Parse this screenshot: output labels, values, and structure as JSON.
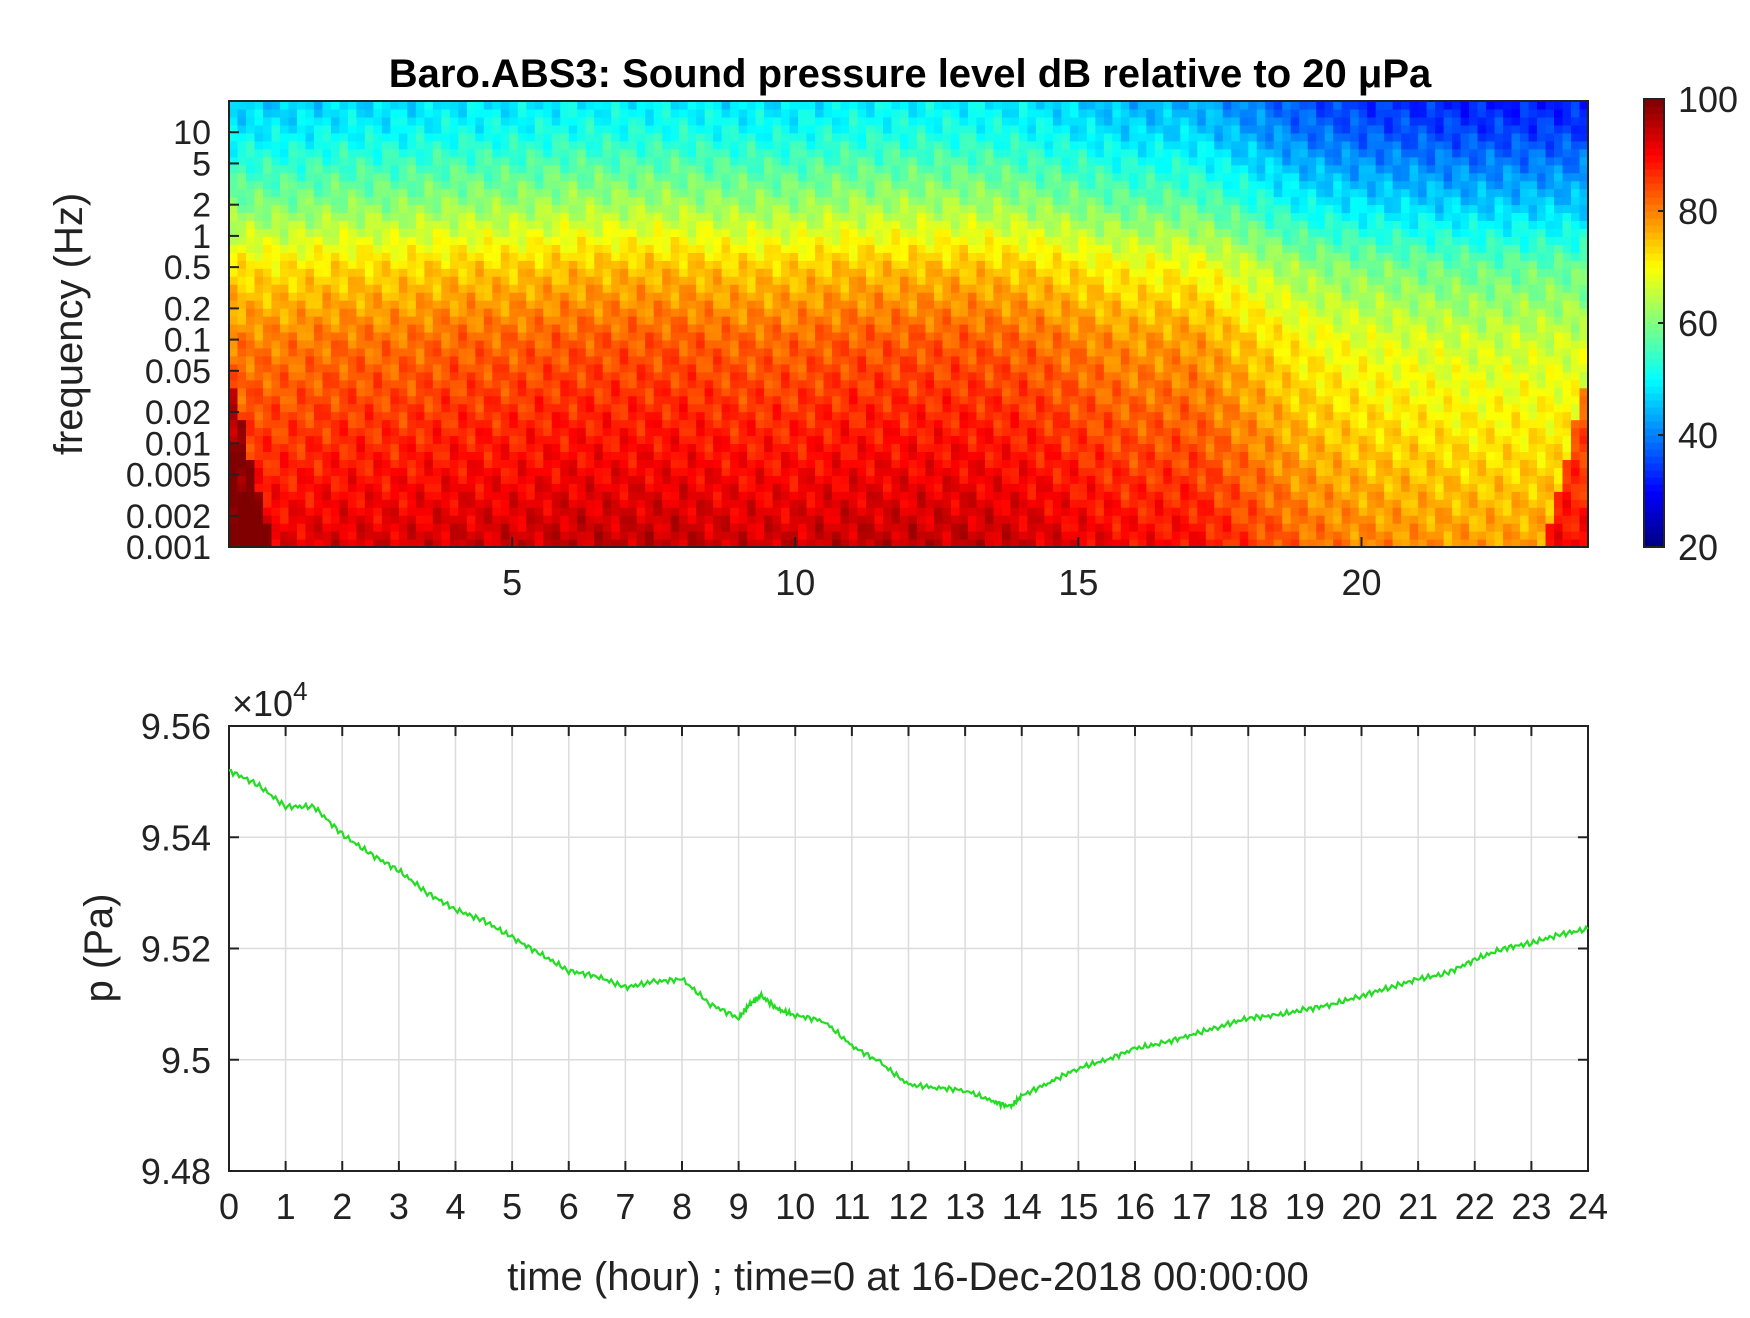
{
  "chart_data": [
    {
      "type": "heatmap",
      "title": "Baro.ABS3: Sound pressure level dB relative to 20 μPa",
      "xlabel": "",
      "ylabel": "frequency (Hz)",
      "x_scale": "linear",
      "y_scale": "log",
      "xlim": [
        0,
        24
      ],
      "ylim": [
        0.001,
        20
      ],
      "x_ticks": [
        5,
        10,
        15,
        20
      ],
      "x_tick_labels": [
        "5",
        "10",
        "15",
        "20"
      ],
      "y_ticks": [
        0.001,
        0.002,
        0.005,
        0.01,
        0.02,
        0.05,
        0.1,
        0.2,
        0.5,
        1,
        2,
        5,
        10
      ],
      "y_tick_labels": [
        "0.001",
        "0.002",
        "0.005",
        "0.01",
        "0.02",
        "0.05",
        "0.1",
        "0.2",
        "0.5",
        "1",
        "2",
        "5",
        "10"
      ],
      "colormap": "jet",
      "colorbar": {
        "range": [
          20,
          100
        ],
        "ticks": [
          20,
          40,
          60,
          80,
          100
        ],
        "tick_labels": [
          "20",
          "40",
          "60",
          "80",
          "100"
        ]
      },
      "spl_hour_means_db": [
        82,
        82,
        83,
        83,
        84,
        84,
        85,
        85,
        85,
        84,
        84,
        85,
        85,
        85,
        84,
        82,
        80,
        80,
        76,
        72,
        70,
        69,
        68,
        68
      ],
      "spl_band_offsets_db": [
        {
          "freq": 0.001,
          "offset": 10
        },
        {
          "freq": 0.01,
          "offset": 4
        },
        {
          "freq": 0.1,
          "offset": -2
        },
        {
          "freq": 0.5,
          "offset": -10
        },
        {
          "freq": 2,
          "offset": -22
        },
        {
          "freq": 10,
          "offset": -33
        },
        {
          "freq": 20,
          "offset": -36
        }
      ]
    },
    {
      "type": "line",
      "title": "",
      "xlabel": "time (hour) ; time=0 at 16-Dec-2018 00:00:00",
      "ylabel": "p (Pa)",
      "y_exponent_label": "×10",
      "y_exponent": "4",
      "xlim": [
        0,
        24
      ],
      "ylim": [
        94800,
        95600
      ],
      "x_ticks": [
        0,
        1,
        2,
        3,
        4,
        5,
        6,
        7,
        8,
        9,
        10,
        11,
        12,
        13,
        14,
        15,
        16,
        17,
        18,
        19,
        20,
        21,
        22,
        23,
        24
      ],
      "x_tick_labels": [
        "0",
        "1",
        "2",
        "3",
        "4",
        "5",
        "6",
        "7",
        "8",
        "9",
        "10",
        "11",
        "12",
        "13",
        "14",
        "15",
        "16",
        "17",
        "18",
        "19",
        "20",
        "21",
        "22",
        "23",
        "24"
      ],
      "y_ticks": [
        94800,
        95000,
        95200,
        95400,
        95600
      ],
      "y_tick_labels": [
        "9.48",
        "9.5",
        "9.52",
        "9.54",
        "9.56"
      ],
      "grid": true,
      "series": [
        {
          "color": "#22dd22",
          "x": [
            0,
            0.5,
            1,
            1.5,
            2,
            2.5,
            3,
            3.5,
            4,
            4.5,
            5,
            5.5,
            6,
            6.5,
            7,
            7.5,
            8,
            8.5,
            9,
            9.2,
            9.4,
            9.7,
            10,
            10.5,
            11,
            11.5,
            12,
            12.5,
            13,
            13.5,
            13.8,
            14,
            14.5,
            15,
            15.5,
            16,
            16.5,
            17,
            17.5,
            18,
            18.5,
            19,
            19.5,
            20,
            20.5,
            21,
            21.5,
            22,
            22.5,
            23,
            23.5,
            24
          ],
          "y": [
            95520,
            95495,
            95455,
            95455,
            95405,
            95370,
            95340,
            95300,
            95270,
            95250,
            95220,
            95190,
            95160,
            95150,
            95130,
            95140,
            95145,
            95100,
            95075,
            95100,
            95115,
            95090,
            95080,
            95070,
            95025,
            94995,
            94955,
            94950,
            94945,
            94925,
            94915,
            94935,
            94960,
            94985,
            95000,
            95020,
            95030,
            95045,
            95060,
            95075,
            95080,
            95090,
            95100,
            95115,
            95130,
            95145,
            95155,
            95180,
            95200,
            95210,
            95225,
            95235
          ]
        }
      ]
    }
  ]
}
